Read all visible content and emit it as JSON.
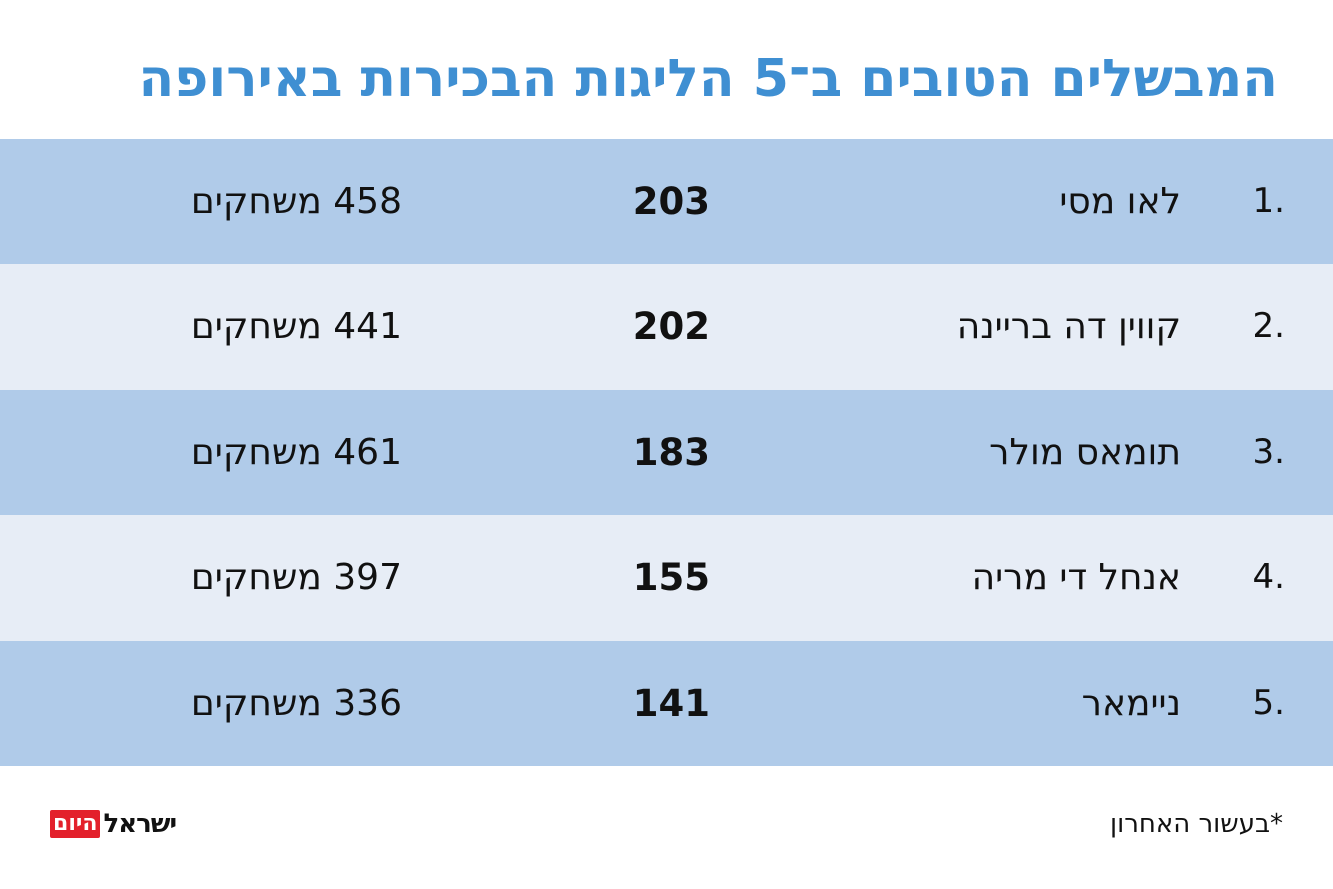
{
  "title": "המבשלים הטובים ב־5 הליגות הבכירות באירופה",
  "colors": {
    "title": "#3f8fd2",
    "row_dark": "#b0cbe9",
    "row_light": "#e7edf6",
    "logo_badge": "#e3202b"
  },
  "rows": [
    {
      "rank": "1.",
      "name": "לאו מסי",
      "count": "203",
      "games": "458 משחקים"
    },
    {
      "rank": "2.",
      "name": "קווין דה בריינה",
      "count": "202",
      "games": "441 משחקים"
    },
    {
      "rank": "3.",
      "name": "תומאס מולר",
      "count": "183",
      "games": "461 משחקים"
    },
    {
      "rank": "4.",
      "name": "אנחל די מריה",
      "count": "155",
      "games": "397 משחקים"
    },
    {
      "rank": "5.",
      "name": "ניימאר",
      "count": "141",
      "games": "336 משחקים"
    }
  ],
  "footnote": "*בעשור האחרון",
  "logo": {
    "main": "ישראל",
    "badge": "היום"
  }
}
